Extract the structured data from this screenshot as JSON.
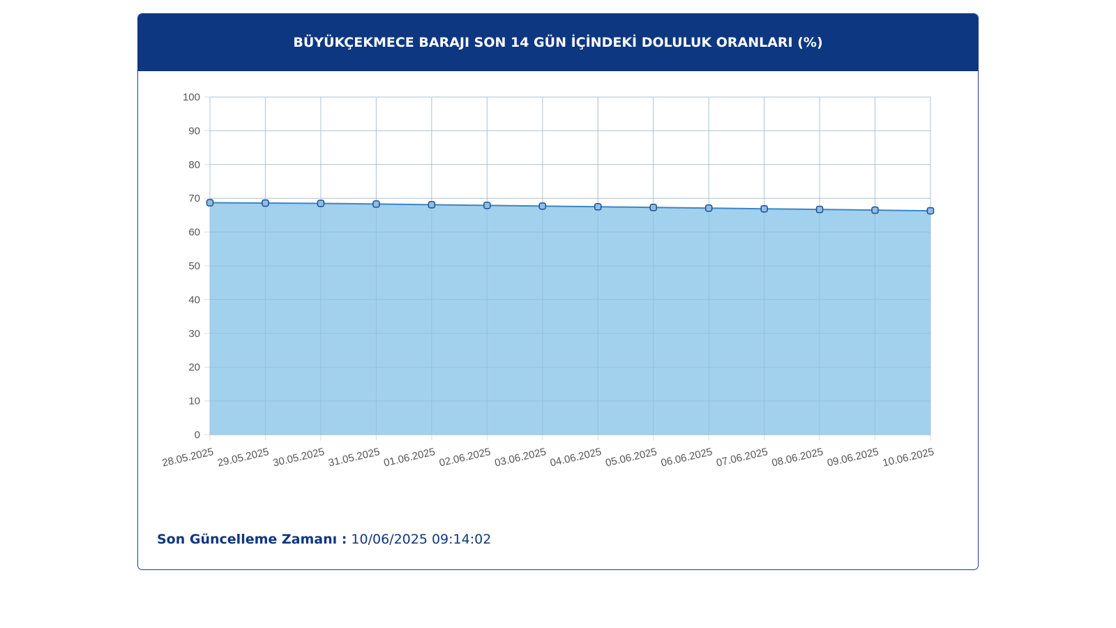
{
  "header": {
    "title": "BÜYÜKÇEKMECE BARAJI SON 14 GÜN İÇİNDEKİ DOLULUK ORANLARI (%)"
  },
  "footer": {
    "updated_label": "Son Güncelleme Zamanı :",
    "updated_value": "10/06/2025 09:14:02"
  },
  "colors": {
    "header_bg": "#0e3782",
    "area_fill": "#9dcfec",
    "line": "#3a86c4",
    "point_fill": "#8fbde6",
    "point_stroke": "#1f4f8f",
    "grid": "#dddddd"
  },
  "chart_data": {
    "type": "area",
    "title": "BÜYÜKÇEKMECE BARAJI SON 14 GÜN İÇİNDEKİ DOLULUK ORANLARI (%)",
    "categories": [
      "28.05.2025",
      "29.05.2025",
      "30.05.2025",
      "31.05.2025",
      "01.06.2025",
      "02.06.2025",
      "03.06.2025",
      "04.06.2025",
      "05.06.2025",
      "06.06.2025",
      "07.06.2025",
      "08.06.2025",
      "09.06.2025",
      "10.06.2025"
    ],
    "series": [
      {
        "values": [
          68.7,
          68.6,
          68.5,
          68.3,
          68.1,
          67.9,
          67.7,
          67.5,
          67.3,
          67.1,
          66.9,
          66.7,
          66.5,
          66.3
        ]
      }
    ],
    "ylim": [
      0,
      100
    ],
    "yticks": [
      0,
      10,
      20,
      30,
      40,
      50,
      60,
      70,
      80,
      90,
      100
    ],
    "grid": true,
    "legend": "none"
  }
}
